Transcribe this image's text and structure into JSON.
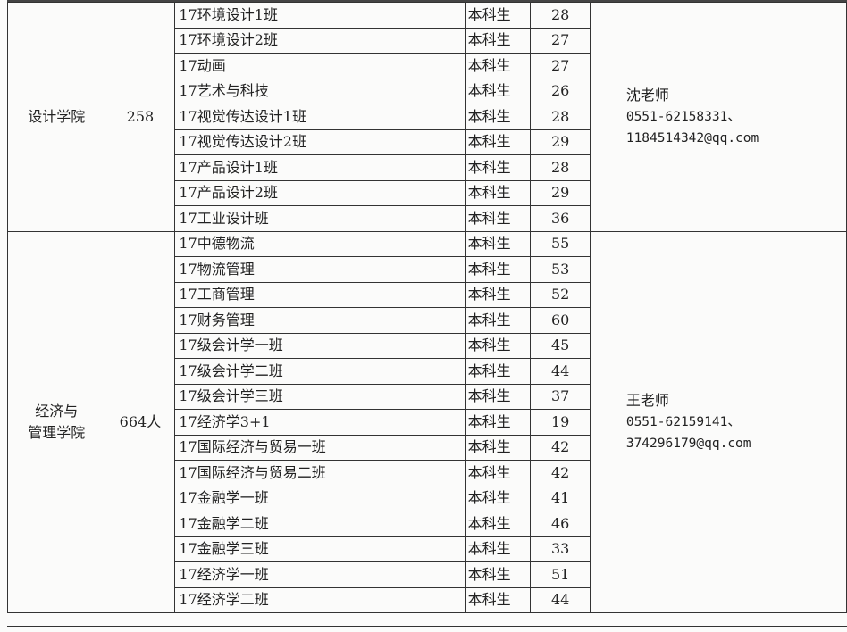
{
  "groups": [
    {
      "college": [
        "设计学院"
      ],
      "total": "258",
      "contact": {
        "name": "沈老师",
        "phone": "0551-62158331、",
        "email": "1184514342@qq.com"
      },
      "rows": [
        {
          "class": "17环境设计1班",
          "type": "本科生",
          "count": "28"
        },
        {
          "class": "17环境设计2班",
          "type": "本科生",
          "count": "27"
        },
        {
          "class": "17动画",
          "type": "本科生",
          "count": "27"
        },
        {
          "class": "17艺术与科技",
          "type": "本科生",
          "count": "26"
        },
        {
          "class": "17视觉传达设计1班",
          "type": "本科生",
          "count": "28"
        },
        {
          "class": "17视觉传达设计2班",
          "type": "本科生",
          "count": "29"
        },
        {
          "class": "17产品设计1班",
          "type": "本科生",
          "count": "28"
        },
        {
          "class": "17产品设计2班",
          "type": "本科生",
          "count": "29"
        },
        {
          "class": "17工业设计班",
          "type": "本科生",
          "count": "36"
        }
      ]
    },
    {
      "college": [
        "经济与",
        "管理学院"
      ],
      "total": "664人",
      "contact": {
        "name": "王老师",
        "phone": "0551-62159141、",
        "email": "374296179@qq.com"
      },
      "rows": [
        {
          "class": "17中德物流",
          "type": "本科生",
          "count": "55"
        },
        {
          "class": "17物流管理",
          "type": "本科生",
          "count": "53"
        },
        {
          "class": "17工商管理",
          "type": "本科生",
          "count": "52"
        },
        {
          "class": "17财务管理",
          "type": "本科生",
          "count": "60"
        },
        {
          "class": "17级会计学一班",
          "type": "本科生",
          "count": "45"
        },
        {
          "class": "17级会计学二班",
          "type": "本科生",
          "count": "44"
        },
        {
          "class": "17级会计学三班",
          "type": "本科生",
          "count": "37"
        },
        {
          "class": "17经济学3+1",
          "type": "本科生",
          "count": "19"
        },
        {
          "class": "17国际经济与贸易一班",
          "type": "本科生",
          "count": "42"
        },
        {
          "class": "17国际经济与贸易二班",
          "type": "本科生",
          "count": "42"
        },
        {
          "class": "17金融学一班",
          "type": "本科生",
          "count": "41"
        },
        {
          "class": "17金融学二班",
          "type": "本科生",
          "count": "46"
        },
        {
          "class": "17金融学三班",
          "type": "本科生",
          "count": "33"
        },
        {
          "class": "17经济学一班",
          "type": "本科生",
          "count": "51"
        },
        {
          "class": "17经济学二班",
          "type": "本科生",
          "count": "44"
        }
      ]
    }
  ]
}
